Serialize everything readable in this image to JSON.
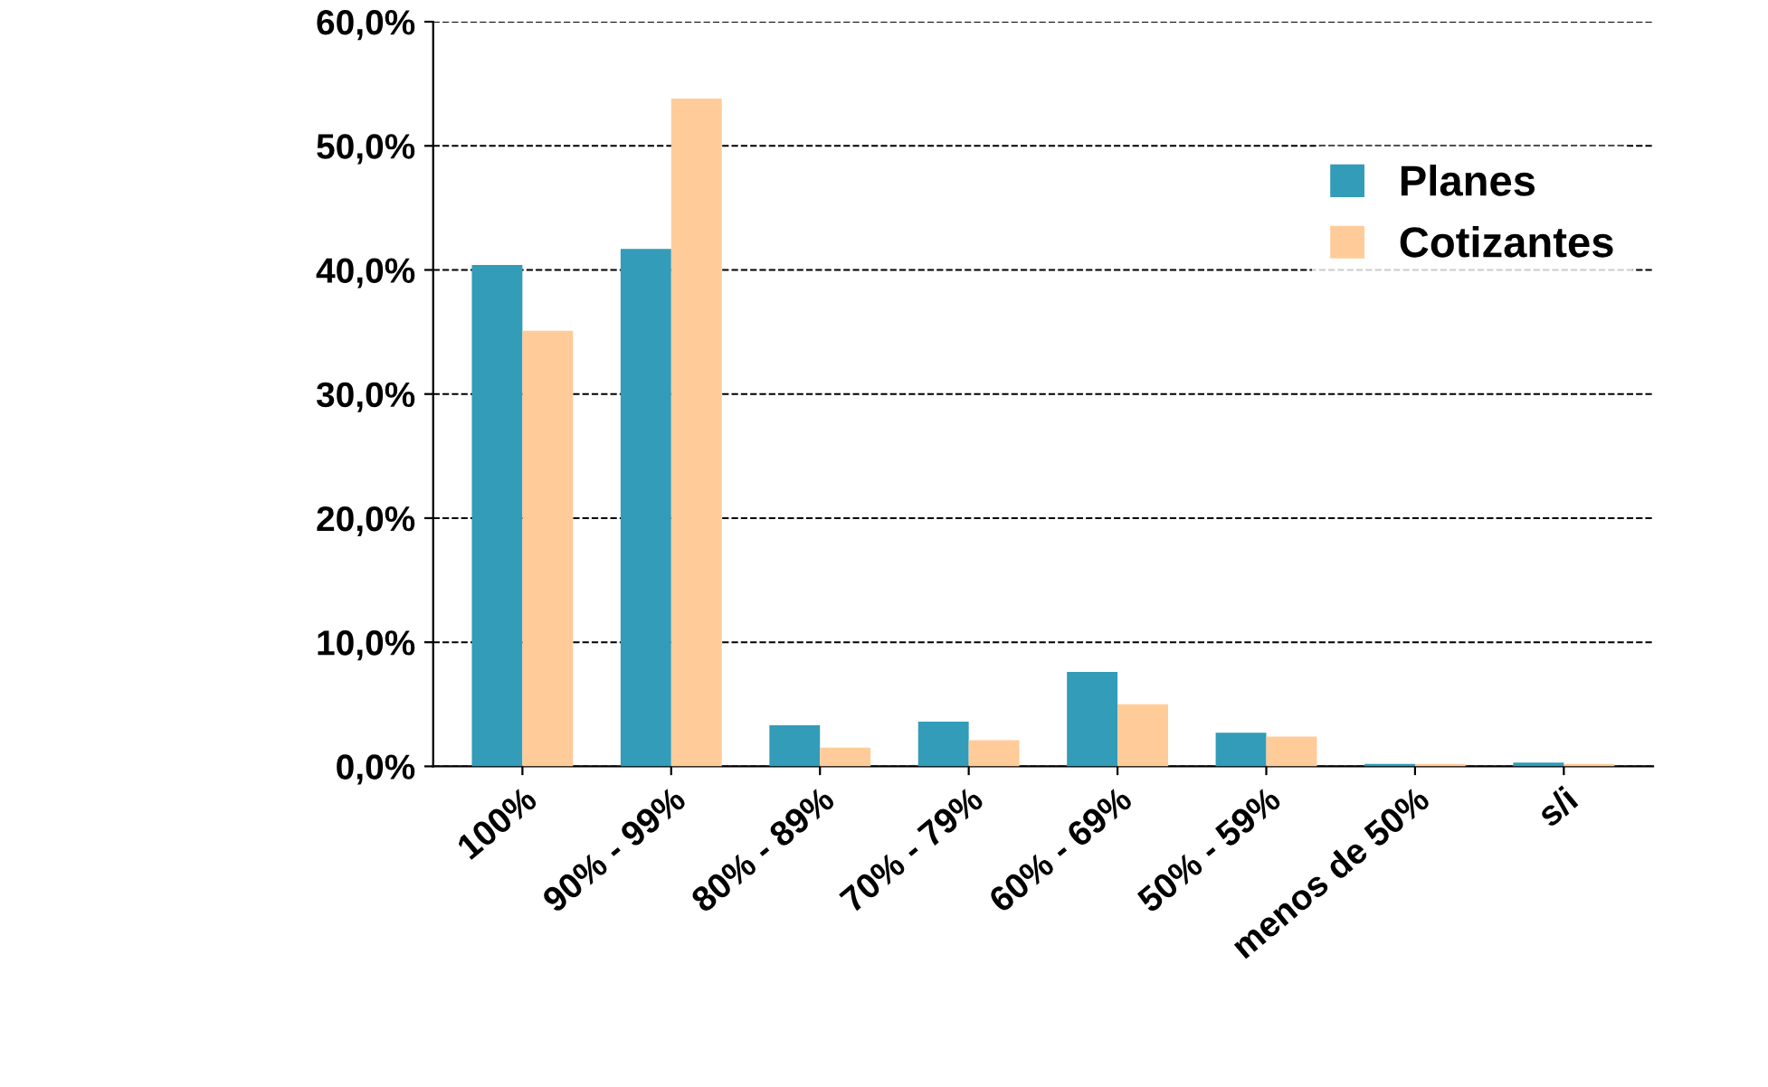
{
  "chart_data": {
    "type": "bar",
    "categories": [
      "100%",
      "90% - 99%",
      "80% - 89%",
      "70% - 79%",
      "60% - 69%",
      "50% - 59%",
      "menos de 50%",
      "s/i"
    ],
    "series": [
      {
        "name": "Planes",
        "color": "#339cb8",
        "values": [
          40.4,
          41.7,
          3.3,
          3.6,
          7.6,
          2.7,
          0.2,
          0.3
        ]
      },
      {
        "name": "Cotizantes",
        "color": "#ffcc99",
        "values": [
          35.1,
          53.8,
          1.5,
          2.1,
          5.0,
          2.4,
          0.2,
          0.2
        ]
      }
    ],
    "ylim": [
      0,
      60
    ],
    "yticks": [
      {
        "value": 0,
        "label": "0,0%"
      },
      {
        "value": 10,
        "label": "10,0%"
      },
      {
        "value": 20,
        "label": "20,0%"
      },
      {
        "value": 30,
        "label": "30,0%"
      },
      {
        "value": 40,
        "label": "40,0%"
      },
      {
        "value": 50,
        "label": "50,0%"
      },
      {
        "value": 60,
        "label": "60,0%"
      }
    ],
    "grid": "y",
    "legend": "top right"
  }
}
